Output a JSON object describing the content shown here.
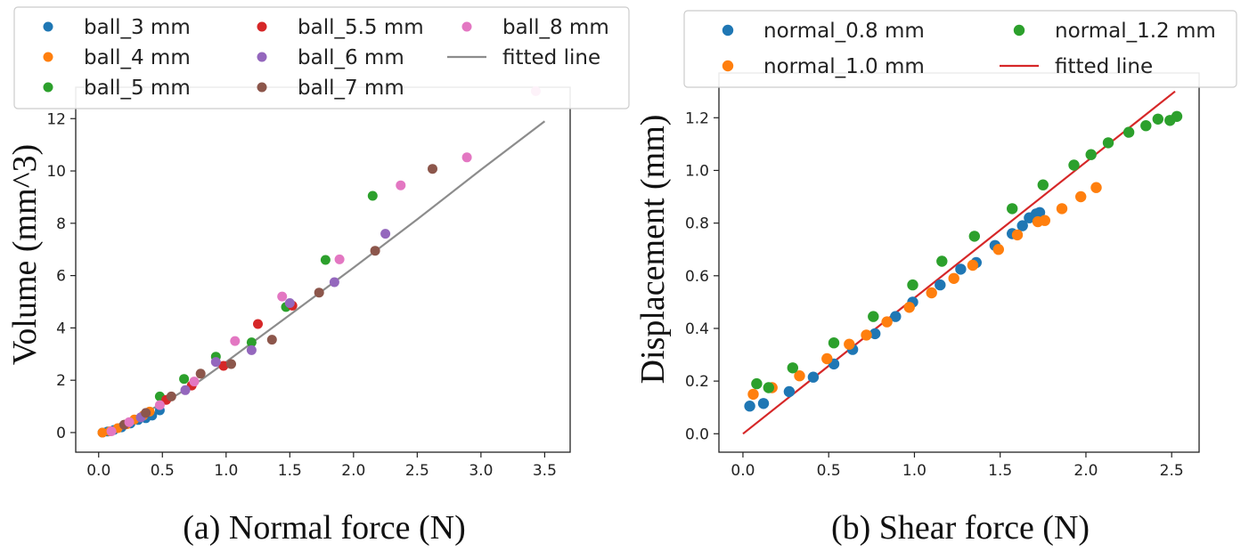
{
  "chart_data": [
    {
      "type": "scatter",
      "panel_caption": "(a) Normal force (N)",
      "ylabel": "Volume (mm^3)",
      "xlabel": "",
      "xlim": [
        -0.18,
        3.7
      ],
      "ylim": [
        -0.75,
        13.2
      ],
      "x_ticks": [
        0.0,
        0.5,
        1.0,
        1.5,
        2.0,
        2.5,
        3.0,
        3.5
      ],
      "x_tick_labels": [
        "0.0",
        "0.5",
        "1.0",
        "1.5",
        "2.0",
        "2.5",
        "3.0",
        "3.5"
      ],
      "y_ticks": [
        0,
        2,
        4,
        6,
        8,
        10,
        12
      ],
      "y_tick_labels": [
        "0",
        "2",
        "4",
        "6",
        "8",
        "10",
        "12"
      ],
      "series": [
        {
          "name": "ball_3 mm",
          "color": "#1f77b4",
          "points": [
            [
              0.03,
              0.0
            ],
            [
              0.07,
              0.04
            ],
            [
              0.12,
              0.1
            ],
            [
              0.18,
              0.2
            ],
            [
              0.25,
              0.35
            ],
            [
              0.31,
              0.48
            ],
            [
              0.37,
              0.55
            ],
            [
              0.42,
              0.65
            ],
            [
              0.48,
              0.85
            ]
          ]
        },
        {
          "name": "ball_4 mm",
          "color": "#ff7f0e",
          "points": [
            [
              0.03,
              0.0
            ],
            [
              0.09,
              0.05
            ],
            [
              0.15,
              0.17
            ],
            [
              0.22,
              0.32
            ],
            [
              0.28,
              0.5
            ],
            [
              0.35,
              0.65
            ],
            [
              0.4,
              0.8
            ]
          ]
        },
        {
          "name": "ball_5 mm",
          "color": "#2ca02c",
          "points": [
            [
              0.48,
              1.38
            ],
            [
              0.67,
              2.05
            ],
            [
              0.92,
              2.9
            ],
            [
              1.2,
              3.45
            ],
            [
              1.47,
              4.8
            ],
            [
              1.78,
              6.6
            ],
            [
              2.15,
              9.05
            ]
          ]
        },
        {
          "name": "ball_5.5 mm",
          "color": "#d62728",
          "points": [
            [
              0.53,
              1.25
            ],
            [
              0.73,
              1.8
            ],
            [
              0.98,
              2.55
            ],
            [
              1.25,
              4.15
            ],
            [
              1.52,
              4.85
            ]
          ]
        },
        {
          "name": "ball_6 mm",
          "color": "#9467bd",
          "points": [
            [
              0.33,
              0.58
            ],
            [
              0.68,
              1.62
            ],
            [
              0.92,
              2.7
            ],
            [
              1.2,
              3.15
            ],
            [
              1.5,
              4.95
            ],
            [
              1.85,
              5.75
            ],
            [
              2.25,
              7.6
            ]
          ]
        },
        {
          "name": "ball_7 mm",
          "color": "#8c564b",
          "points": [
            [
              0.2,
              0.3
            ],
            [
              0.37,
              0.75
            ],
            [
              0.57,
              1.38
            ],
            [
              0.8,
              2.25
            ],
            [
              1.04,
              2.62
            ],
            [
              1.36,
              3.55
            ],
            [
              1.73,
              5.35
            ],
            [
              2.17,
              6.95
            ],
            [
              2.62,
              10.08
            ]
          ]
        },
        {
          "name": "ball_8 mm",
          "color": "#e377c2",
          "points": [
            [
              0.1,
              0.05
            ],
            [
              0.24,
              0.4
            ],
            [
              0.48,
              1.05
            ],
            [
              0.75,
              1.95
            ],
            [
              1.07,
              3.5
            ],
            [
              1.44,
              5.2
            ],
            [
              1.89,
              6.62
            ],
            [
              2.37,
              9.45
            ],
            [
              2.89,
              10.52
            ],
            [
              3.43,
              13.05
            ]
          ]
        }
      ],
      "fit_line": {
        "name": "fitted line",
        "color": "#8c8c8c",
        "points": [
          [
            0.03,
            0.0
          ],
          [
            0.2,
            0.3
          ],
          [
            0.4,
            0.85
          ],
          [
            0.6,
            1.4
          ],
          [
            0.8,
            2.0
          ],
          [
            1.0,
            2.7
          ],
          [
            1.5,
            4.5
          ],
          [
            2.0,
            6.3
          ],
          [
            2.5,
            8.15
          ],
          [
            3.0,
            10.05
          ],
          [
            3.5,
            11.9
          ]
        ]
      },
      "legend": {
        "placement": "top",
        "ncol": 3
      },
      "grid": false
    },
    {
      "type": "scatter",
      "panel_caption": "(b) Shear force (N)",
      "ylabel": "Displacement (mm)",
      "xlabel": "",
      "xlim": [
        -0.14,
        2.66
      ],
      "ylim": [
        -0.07,
        1.37
      ],
      "x_ticks": [
        0.0,
        0.5,
        1.0,
        1.5,
        2.0,
        2.5
      ],
      "x_tick_labels": [
        "0.0",
        "0.5",
        "1.0",
        "1.5",
        "2.0",
        "2.5"
      ],
      "y_ticks": [
        0.0,
        0.2,
        0.4,
        0.6,
        0.8,
        1.0,
        1.2
      ],
      "y_tick_labels": [
        "0.0",
        "0.2",
        "0.4",
        "0.6",
        "0.8",
        "1.0",
        "1.2"
      ],
      "series": [
        {
          "name": "normal_0.8 mm",
          "color": "#1f77b4",
          "points": [
            [
              0.04,
              0.105
            ],
            [
              0.12,
              0.115
            ],
            [
              0.27,
              0.16
            ],
            [
              0.41,
              0.215
            ],
            [
              0.53,
              0.265
            ],
            [
              0.64,
              0.32
            ],
            [
              0.77,
              0.38
            ],
            [
              0.89,
              0.445
            ],
            [
              0.99,
              0.5
            ],
            [
              1.15,
              0.565
            ],
            [
              1.27,
              0.625
            ],
            [
              1.36,
              0.65
            ],
            [
              1.47,
              0.715
            ],
            [
              1.57,
              0.76
            ],
            [
              1.63,
              0.79
            ],
            [
              1.67,
              0.82
            ],
            [
              1.71,
              0.835
            ],
            [
              1.73,
              0.84
            ]
          ]
        },
        {
          "name": "normal_1.0 mm",
          "color": "#ff7f0e",
          "points": [
            [
              0.06,
              0.15
            ],
            [
              0.17,
              0.175
            ],
            [
              0.33,
              0.22
            ],
            [
              0.49,
              0.285
            ],
            [
              0.62,
              0.34
            ],
            [
              0.72,
              0.375
            ],
            [
              0.84,
              0.425
            ],
            [
              0.97,
              0.48
            ],
            [
              1.1,
              0.535
            ],
            [
              1.23,
              0.59
            ],
            [
              1.34,
              0.64
            ],
            [
              1.49,
              0.7
            ],
            [
              1.6,
              0.755
            ],
            [
              1.72,
              0.805
            ],
            [
              1.76,
              0.81
            ],
            [
              1.86,
              0.855
            ],
            [
              1.97,
              0.9
            ],
            [
              2.06,
              0.935
            ]
          ]
        },
        {
          "name": "normal_1.2 mm",
          "color": "#2ca02c",
          "points": [
            [
              0.08,
              0.19
            ],
            [
              0.15,
              0.175
            ],
            [
              0.29,
              0.25
            ],
            [
              0.53,
              0.345
            ],
            [
              0.76,
              0.445
            ],
            [
              0.99,
              0.565
            ],
            [
              1.16,
              0.655
            ],
            [
              1.35,
              0.75
            ],
            [
              1.57,
              0.855
            ],
            [
              1.75,
              0.945
            ],
            [
              1.93,
              1.02
            ],
            [
              2.03,
              1.06
            ],
            [
              2.13,
              1.105
            ],
            [
              2.25,
              1.145
            ],
            [
              2.35,
              1.17
            ],
            [
              2.42,
              1.195
            ],
            [
              2.49,
              1.19
            ],
            [
              2.53,
              1.205
            ]
          ]
        }
      ],
      "fit_line": {
        "name": "fitted line",
        "color": "#d62728",
        "points": [
          [
            0.0,
            0.0
          ],
          [
            2.52,
            1.3
          ]
        ]
      },
      "legend": {
        "placement": "top",
        "ncol": 2
      },
      "grid": false
    }
  ]
}
